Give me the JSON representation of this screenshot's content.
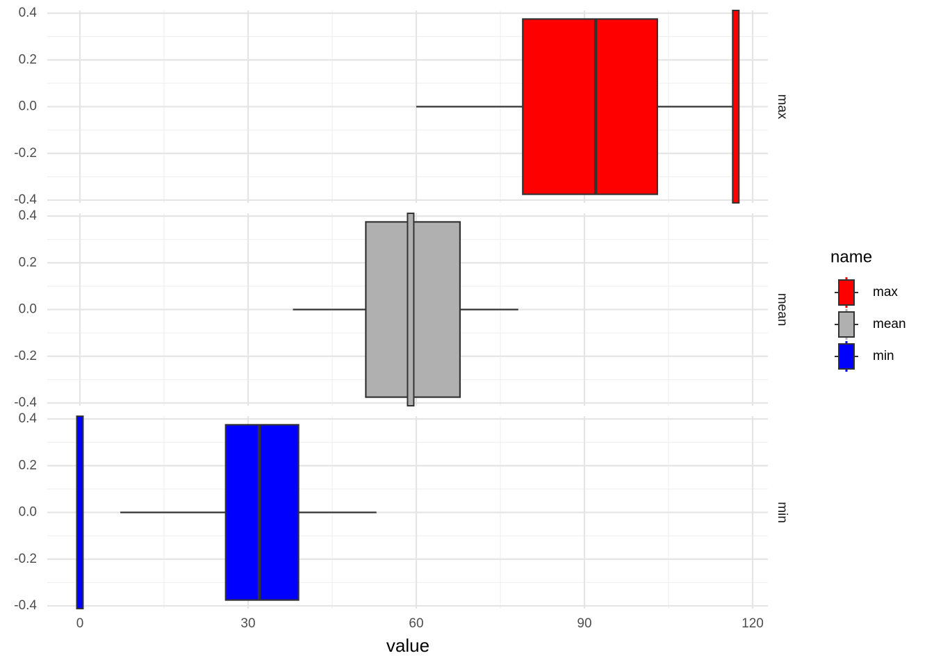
{
  "chart_data": {
    "type": "boxplot",
    "orientation": "horizontal",
    "x_label": "value",
    "xlim": [
      -5,
      122
    ],
    "xticks": [
      0,
      30,
      60,
      90,
      120
    ],
    "ylim": [
      -0.4,
      0.4
    ],
    "yticks": [
      0.4,
      0.2,
      {
        "value": 0,
        "label": "0.0"
      },
      -0.2,
      -0.4
    ],
    "grid": true,
    "legend": {
      "title": "name",
      "position": "right"
    },
    "facets": [
      {
        "name": "max",
        "color": "#ff0000",
        "min": 60,
        "q1": 79,
        "median": 92,
        "q3": 103,
        "max": 116.4,
        "outliers": [],
        "vline": 117
      },
      {
        "name": "mean",
        "color": "#b0b0b0",
        "min": 38,
        "q1": 51,
        "median": 59,
        "q3": 67.8,
        "max": 78.2,
        "outliers": [],
        "vline": 59
      },
      {
        "name": "min",
        "color": "#0000ff",
        "min": 7.2,
        "q1": 26,
        "median": 32,
        "q3": 39,
        "max": 52.9,
        "outliers": [
          0
        ],
        "vline": 0
      }
    ]
  }
}
